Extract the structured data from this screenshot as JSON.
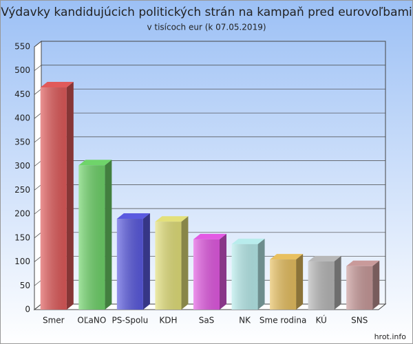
{
  "chart_data": {
    "type": "bar",
    "title": "Výdavky kandidujúcich politických strán na kampaň pred eurovoľbami",
    "subtitle": "v tisícoch eur (k 07.05.2019)",
    "categories": [
      "Smer",
      "OĽaNO",
      "PS-Spolu",
      "KDH",
      "SaS",
      "NK",
      "Sme rodina",
      "KÚ",
      "SNS"
    ],
    "values": [
      465,
      302,
      190,
      184,
      147,
      137,
      105,
      101,
      91
    ],
    "colors": [
      "#e05a5a",
      "#6fd46a",
      "#5a5ae0",
      "#e3e07a",
      "#e35ae3",
      "#b8ecec",
      "#e8c060",
      "#b8b8b8",
      "#c99a9a"
    ],
    "ylim": [
      0,
      550
    ],
    "yticks": [
      0,
      50,
      100,
      150,
      200,
      250,
      300,
      350,
      400,
      450,
      500,
      550
    ],
    "grid": true,
    "source": "hrot.info"
  }
}
